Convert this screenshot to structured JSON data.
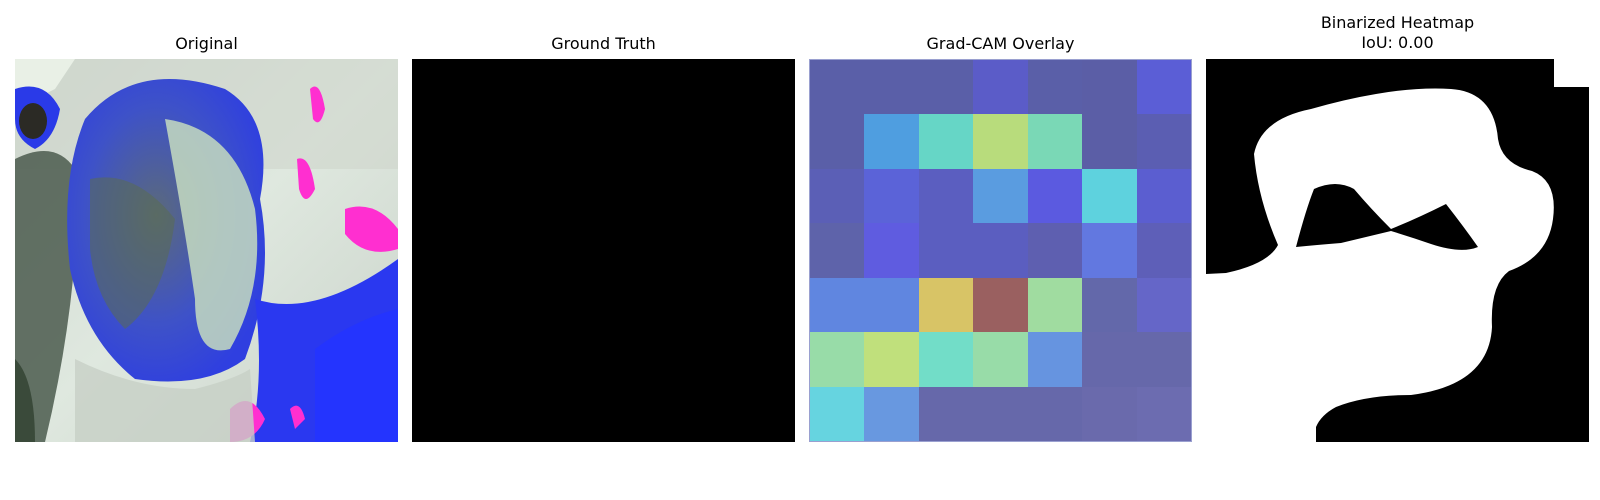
{
  "panels": [
    {
      "title": "Original"
    },
    {
      "title": "Ground Truth"
    },
    {
      "title": "Grad-CAM Overlay"
    },
    {
      "title": "Binarized Heatmap\nIoU: 0.00"
    }
  ],
  "gradcam_grid": [
    [
      "#5a5fa8",
      "#5a5fa8",
      "#5a5fa8",
      "#5b5cc8",
      "#5a5fa8",
      "#5b5ea6",
      "#5b5ed6"
    ],
    [
      "#5a5fa8",
      "#4f9ee0",
      "#66d6c6",
      "#b8dc7c",
      "#7ad8b6",
      "#5b5ea6",
      "#5b5eb2"
    ],
    [
      "#5b5fb6",
      "#5b63d8",
      "#5b5ec0",
      "#5a9ce0",
      "#5b5ae0",
      "#5ed2de",
      "#5b5ed0"
    ],
    [
      "#5e63aa",
      "#5f5ce0",
      "#5b5ec0",
      "#5b5ec0",
      "#5e5fb0",
      "#6278e0",
      "#5e5fb8"
    ],
    [
      "#6086e0",
      "#6086e0",
      "#d8c466",
      "#9a6060",
      "#a0dca0",
      "#6368aa",
      "#6566c8"
    ],
    [
      "#98dca8",
      "#c0e07c",
      "#72ddc8",
      "#98dca8",
      "#6694e0",
      "#6668aa",
      "#6668aa"
    ],
    [
      "#66d4e0",
      "#6898e0",
      "#6668aa",
      "#6668aa",
      "#6668aa",
      "#6a6aac",
      "#6c6cb0"
    ]
  ]
}
